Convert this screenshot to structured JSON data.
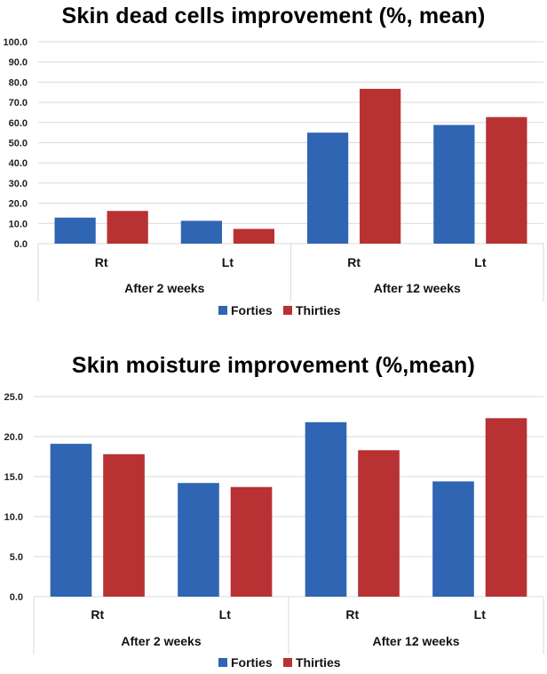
{
  "colors": {
    "forties": "#2f65b3",
    "thirties": "#b83133",
    "grid": "#d9d9d9"
  },
  "chart_data": [
    {
      "type": "bar",
      "title": "Skin dead cells improvement (%, mean)",
      "xlabel": "",
      "ylabel": "",
      "ylim": [
        0,
        100
      ],
      "ytick_step": 10,
      "ytick_labels": [
        "0.0",
        "10.0",
        "20.0",
        "30.0",
        "40.0",
        "50.0",
        "60.0",
        "70.0",
        "80.0",
        "90.0",
        "100.0"
      ],
      "grid": true,
      "legend_position": "bottom",
      "groups": [
        "After 2 weeks",
        "After 12 weeks"
      ],
      "categories": [
        "Rt",
        "Lt",
        "Rt",
        "Lt"
      ],
      "series": [
        {
          "name": "Forties",
          "values": [
            12.9,
            11.3,
            55.0,
            58.8
          ]
        },
        {
          "name": "Thirties",
          "values": [
            16.2,
            7.3,
            76.7,
            62.7
          ]
        }
      ]
    },
    {
      "type": "bar",
      "title": "Skin moisture improvement (%,mean)",
      "xlabel": "",
      "ylabel": "",
      "ylim": [
        0,
        25
      ],
      "ytick_step": 5,
      "ytick_labels": [
        "0.0",
        "5.0",
        "10.0",
        "15.0",
        "20.0",
        "25.0"
      ],
      "grid": true,
      "legend_position": "bottom",
      "groups": [
        "After 2 weeks",
        "After 12 weeks"
      ],
      "categories": [
        "Rt",
        "Lt",
        "Rt",
        "Lt"
      ],
      "series": [
        {
          "name": "Forties",
          "values": [
            19.1,
            14.2,
            21.8,
            14.4
          ]
        },
        {
          "name": "Thirties",
          "values": [
            17.8,
            13.7,
            18.3,
            22.3
          ]
        }
      ]
    }
  ]
}
